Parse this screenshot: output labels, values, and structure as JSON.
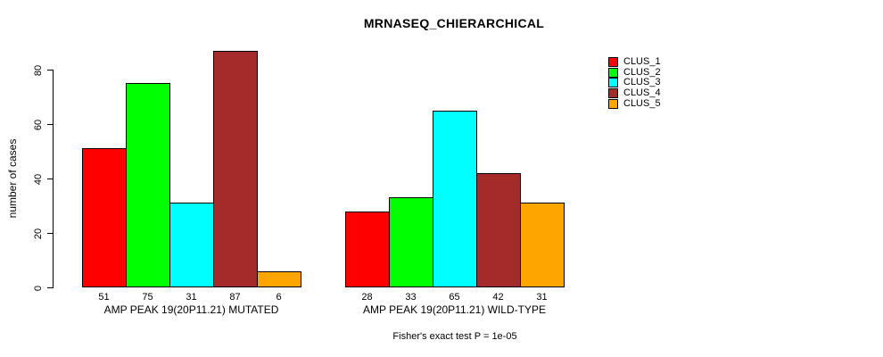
{
  "chart_data": {
    "type": "bar",
    "title": "MRNASEQ_CHIERARCHICAL",
    "ylabel": "number of cases",
    "yticks": [
      0,
      20,
      40,
      60,
      80
    ],
    "ylim": [
      0,
      87
    ],
    "grid": false,
    "legend_position": "top-right",
    "categories": [
      "AMP PEAK 19(20P11.21) MUTATED",
      "AMP PEAK 19(20P11.21) WILD-TYPE"
    ],
    "series": [
      {
        "name": "CLUS_1",
        "color": "#FF0000",
        "values": [
          51,
          28
        ]
      },
      {
        "name": "CLUS_2",
        "color": "#00FF00",
        "values": [
          75,
          33
        ]
      },
      {
        "name": "CLUS_3",
        "color": "#00FFFF",
        "values": [
          31,
          65
        ]
      },
      {
        "name": "CLUS_4",
        "color": "#A52A2A",
        "values": [
          87,
          42
        ]
      },
      {
        "name": "CLUS_5",
        "color": "#FFA500",
        "values": [
          6,
          31
        ]
      }
    ],
    "bar_value_labels": [
      [
        51,
        75,
        31,
        87,
        6
      ],
      [
        28,
        33,
        65,
        42,
        31
      ]
    ],
    "annotation": "Fisher's exact test P = 1e-05"
  }
}
